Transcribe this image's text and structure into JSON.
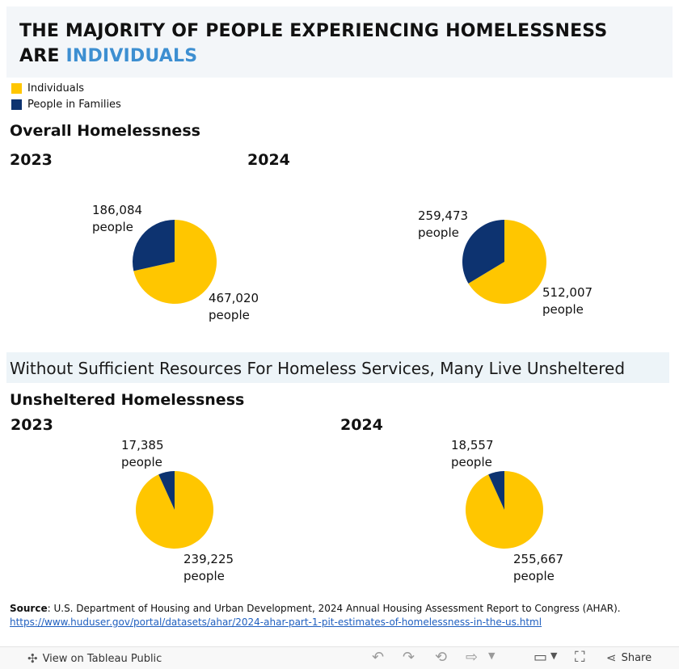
{
  "header": {
    "title_line1": "THE MAJORITY OF PEOPLE EXPERIENCING HOMELESSNESS",
    "title_line2_prefix": "ARE",
    "title_line2_accent": "INDIVIDUALS"
  },
  "legend": {
    "items": [
      {
        "label": "Individuals",
        "color": "#ffc600"
      },
      {
        "label": "People in Families",
        "color": "#0d3370"
      }
    ]
  },
  "colors": {
    "individuals": "#ffc600",
    "families": "#0d3370",
    "accent": "#3d8fd1"
  },
  "sections": {
    "overall_title": "Overall Homelessness",
    "band_text": "Without Sufficient Resources For Homeless Services, Many Live Unsheltered",
    "unsheltered_title": "Unsheltered Homelessness"
  },
  "chart_data": [
    {
      "type": "pie",
      "title": "Overall Homelessness",
      "year": "2023",
      "categories": [
        "Individuals",
        "People in Families"
      ],
      "values": [
        467020,
        186084
      ],
      "labels": {
        "individuals": "467,020",
        "families": "186,084",
        "unit": "people"
      }
    },
    {
      "type": "pie",
      "title": "Overall Homelessness",
      "year": "2024",
      "categories": [
        "Individuals",
        "People in Families"
      ],
      "values": [
        512007,
        259473
      ],
      "labels": {
        "individuals": "512,007",
        "families": "259,473",
        "unit": "people"
      }
    },
    {
      "type": "pie",
      "title": "Unsheltered Homelessness",
      "year": "2023",
      "categories": [
        "Individuals",
        "People in Families"
      ],
      "values": [
        239225,
        17385
      ],
      "labels": {
        "individuals": "239,225",
        "families": "17,385",
        "unit": "people"
      }
    },
    {
      "type": "pie",
      "title": "Unsheltered Homelessness",
      "year": "2024",
      "categories": [
        "Individuals",
        "People in Families"
      ],
      "values": [
        255667,
        18557
      ],
      "labels": {
        "individuals": "255,667",
        "families": "18,557",
        "unit": "people"
      }
    }
  ],
  "source": {
    "label": "Source",
    "text": ": U.S. Department of Housing and Urban Development, 2024 Annual Housing Assessment Report to Congress (AHAR).",
    "link": "https://www.huduser.gov/portal/datasets/ahar/2024-ahar-part-1-pit-estimates-of-homelessness-in-the-us.html"
  },
  "toolbar": {
    "view_label": "View on Tableau Public",
    "share_label": "Share"
  }
}
